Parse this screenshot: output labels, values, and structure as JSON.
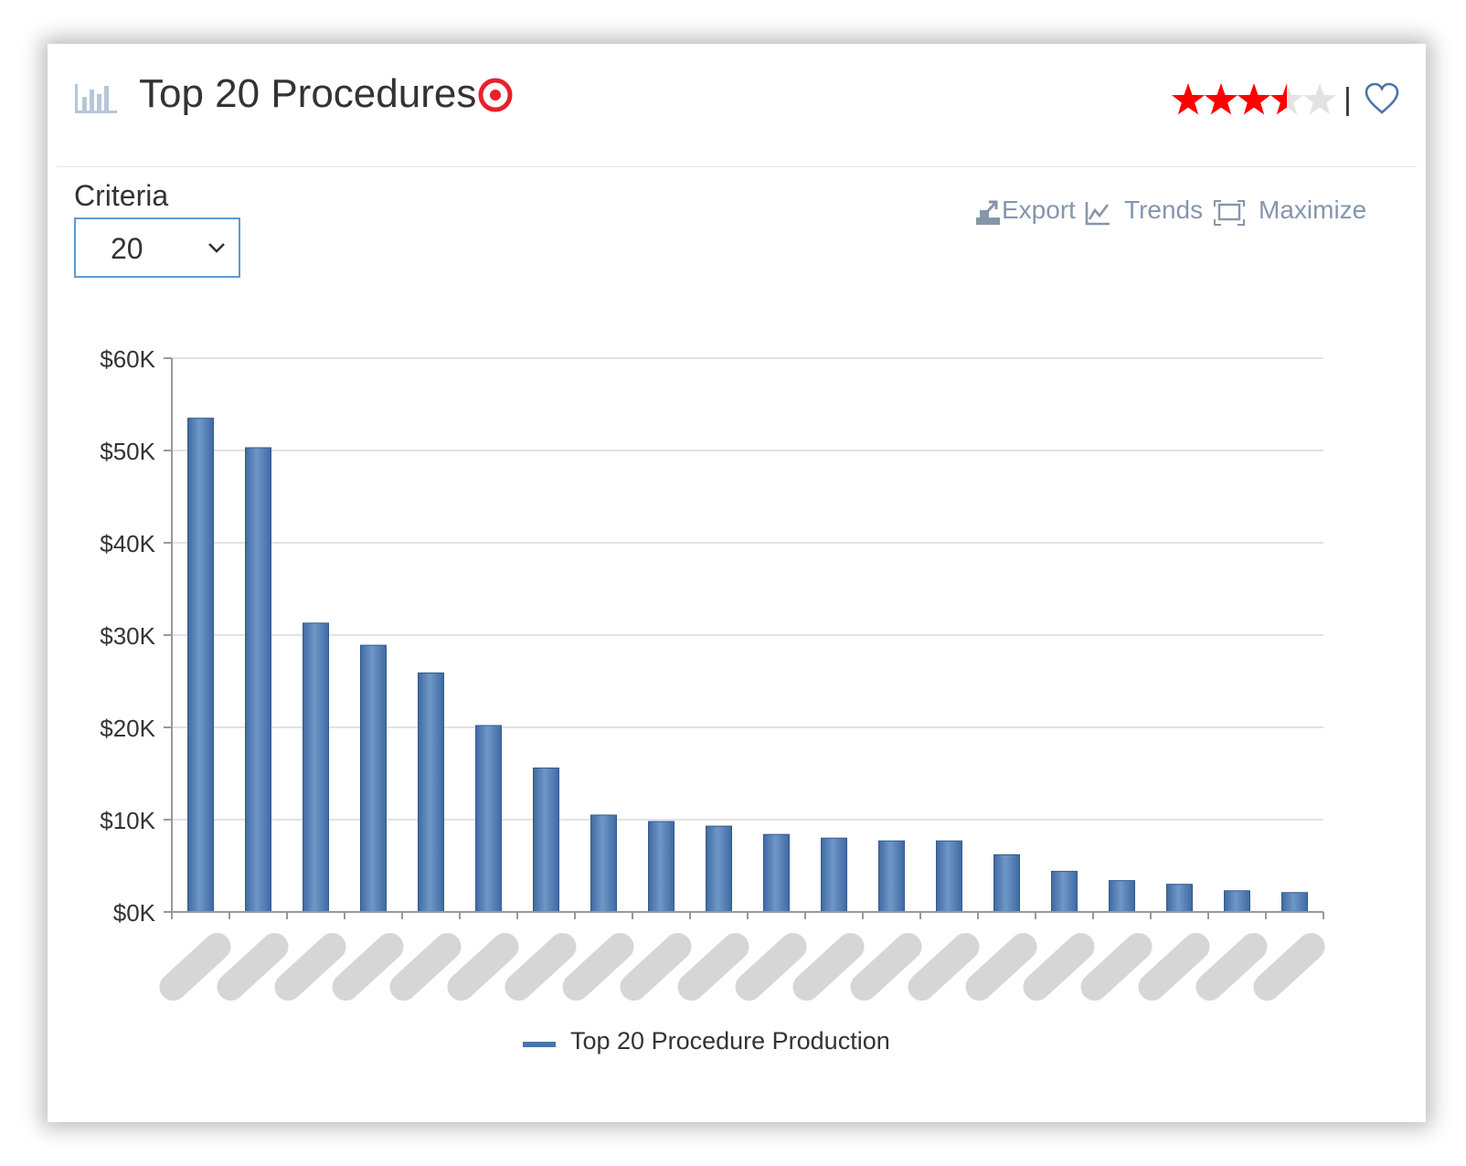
{
  "header": {
    "title": "Top 20 Procedures",
    "rating": 3.5,
    "rating_max": 5,
    "separator": "|"
  },
  "icons": {
    "title": "bar-chart-icon",
    "target": "target-icon",
    "favorite": "heart-icon",
    "export": "export-icon",
    "trends": "trends-icon",
    "maximize": "maximize-icon",
    "dropdown": "chevron-down-icon"
  },
  "colors": {
    "bar": "#4a74ac",
    "star_active": "#ff0000",
    "star_inactive": "#e3e3e3",
    "target": "#e8202a",
    "toolbar": "#8596ab",
    "select_border": "#5b9bd5",
    "redacted_label": "#d6d6d6"
  },
  "criteria": {
    "label": "Criteria",
    "value": "20"
  },
  "toolbar": {
    "export_label": "Export",
    "trends_label": "Trends",
    "maximize_label": "Maximize"
  },
  "chart_data": {
    "type": "bar",
    "categories_redacted": true,
    "series": [
      {
        "name": "Top 20 Procedure Production",
        "values": [
          53500,
          50300,
          31300,
          28900,
          25900,
          20200,
          15600,
          10500,
          9800,
          9300,
          8400,
          8000,
          7700,
          7700,
          6200,
          4400,
          3400,
          3000,
          2300,
          2100
        ]
      }
    ],
    "ylim": [
      0,
      60000
    ],
    "yticks": [
      "$0K",
      "$10K",
      "$20K",
      "$30K",
      "$40K",
      "$50K",
      "$60K"
    ],
    "grid": true,
    "legend_position": "bottom-center"
  }
}
